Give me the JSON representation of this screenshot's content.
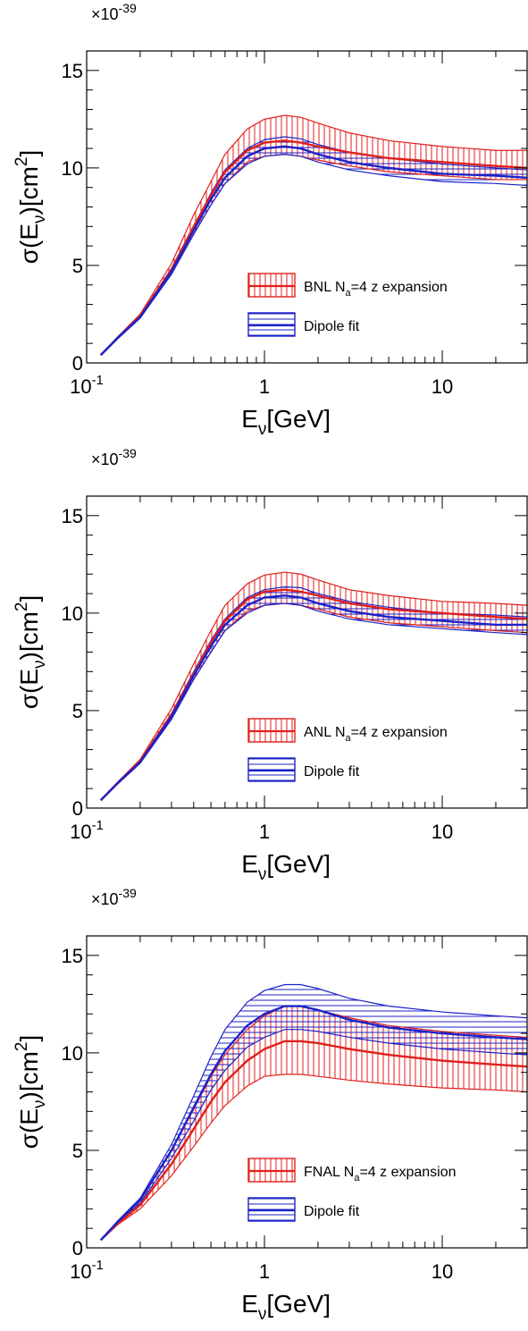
{
  "chart_data": [
    {
      "type": "area",
      "multiplier": "×10",
      "multiplier_exp": "-39",
      "ylabel": {
        "pre": "σ(E",
        "sub": "ν",
        "mid": ")[cm",
        "sup": "2",
        "post": "]"
      },
      "xlabel": {
        "pre": "E",
        "sub": "ν",
        "post": "[GeV]"
      },
      "x_scale": "log",
      "xlim": [
        0.1,
        30
      ],
      "ylim": [
        0,
        16
      ],
      "x_ticks": [
        {
          "base": "10",
          "exp": "-1"
        },
        {
          "text": "1"
        },
        {
          "text": "10"
        }
      ],
      "y_ticks": [
        "0",
        "5",
        "10",
        "15"
      ],
      "legend": [
        {
          "pre": "BNL N",
          "sub": "a",
          "post": "=4 z expansion"
        },
        {
          "text": "Dipole fit"
        }
      ],
      "x": [
        0.12,
        0.15,
        0.2,
        0.3,
        0.4,
        0.5,
        0.6,
        0.8,
        1.0,
        1.3,
        1.6,
        2.0,
        3.0,
        5.0,
        10.0,
        20.0,
        30.0
      ],
      "series": [
        {
          "color": "#e0201c",
          "hatch": "vertical",
          "center": [
            0.4,
            1.3,
            2.4,
            4.8,
            7.0,
            8.6,
            9.8,
            10.9,
            11.3,
            11.4,
            11.3,
            11.1,
            10.8,
            10.5,
            10.3,
            10.1,
            10.0
          ],
          "lower": [
            0.4,
            1.25,
            2.3,
            4.6,
            6.6,
            8.1,
            9.2,
            10.3,
            10.6,
            10.7,
            10.6,
            10.4,
            10.1,
            9.8,
            9.6,
            9.4,
            9.4
          ],
          "upper": [
            0.4,
            1.35,
            2.5,
            5.1,
            7.6,
            9.3,
            10.7,
            12.0,
            12.5,
            12.7,
            12.6,
            12.3,
            11.8,
            11.4,
            11.1,
            10.9,
            10.9
          ]
        },
        {
          "color": "#1c22c8",
          "hatch": "horizontal",
          "center": [
            0.4,
            1.3,
            2.35,
            4.7,
            6.8,
            8.4,
            9.5,
            10.6,
            11.0,
            11.1,
            11.0,
            10.7,
            10.3,
            10.0,
            9.7,
            9.6,
            9.5
          ],
          "lower": [
            0.4,
            1.25,
            2.3,
            4.55,
            6.6,
            8.1,
            9.2,
            10.2,
            10.6,
            10.7,
            10.6,
            10.3,
            9.9,
            9.6,
            9.3,
            9.2,
            9.1
          ],
          "upper": [
            0.4,
            1.35,
            2.4,
            4.85,
            7.0,
            8.7,
            9.9,
            11.0,
            11.45,
            11.6,
            11.5,
            11.2,
            10.8,
            10.5,
            10.2,
            10.0,
            9.9
          ]
        }
      ]
    },
    {
      "type": "area",
      "multiplier": "×10",
      "multiplier_exp": "-39",
      "ylabel": {
        "pre": "σ(E",
        "sub": "ν",
        "mid": ")[cm",
        "sup": "2",
        "post": "]"
      },
      "xlabel": {
        "pre": "E",
        "sub": "ν",
        "post": "[GeV]"
      },
      "x_scale": "log",
      "xlim": [
        0.1,
        30
      ],
      "ylim": [
        0,
        16
      ],
      "x_ticks": [
        {
          "base": "10",
          "exp": "-1"
        },
        {
          "text": "1"
        },
        {
          "text": "10"
        }
      ],
      "y_ticks": [
        "0",
        "5",
        "10",
        "15"
      ],
      "legend": [
        {
          "pre": "ANL N",
          "sub": "a",
          "post": "=4 z expansion"
        },
        {
          "text": "Dipole fit"
        }
      ],
      "x": [
        0.12,
        0.15,
        0.2,
        0.3,
        0.4,
        0.5,
        0.6,
        0.8,
        1.0,
        1.3,
        1.6,
        2.0,
        3.0,
        5.0,
        10.0,
        20.0,
        30.0
      ],
      "series": [
        {
          "color": "#e0201c",
          "hatch": "vertical",
          "center": [
            0.4,
            1.3,
            2.4,
            4.8,
            6.9,
            8.5,
            9.6,
            10.7,
            11.1,
            11.2,
            11.1,
            10.9,
            10.5,
            10.2,
            10.0,
            9.8,
            9.7
          ],
          "lower": [
            0.4,
            1.25,
            2.3,
            4.6,
            6.6,
            8.0,
            9.1,
            10.1,
            10.4,
            10.5,
            10.4,
            10.2,
            9.8,
            9.5,
            9.3,
            9.1,
            9.0
          ],
          "upper": [
            0.4,
            1.35,
            2.5,
            5.1,
            7.4,
            9.1,
            10.4,
            11.5,
            11.95,
            12.1,
            12.0,
            11.7,
            11.2,
            10.9,
            10.6,
            10.5,
            10.4
          ]
        },
        {
          "color": "#1c22c8",
          "hatch": "horizontal",
          "center": [
            0.4,
            1.3,
            2.35,
            4.7,
            6.8,
            8.3,
            9.4,
            10.4,
            10.8,
            10.9,
            10.8,
            10.5,
            10.1,
            9.8,
            9.6,
            9.4,
            9.4
          ],
          "lower": [
            0.4,
            1.25,
            2.3,
            4.55,
            6.6,
            8.0,
            9.1,
            10.0,
            10.4,
            10.5,
            10.4,
            10.1,
            9.7,
            9.4,
            9.2,
            9.0,
            8.9
          ],
          "upper": [
            0.4,
            1.35,
            2.4,
            4.85,
            7.0,
            8.6,
            9.7,
            10.8,
            11.2,
            11.35,
            11.3,
            11.0,
            10.6,
            10.3,
            10.0,
            9.9,
            9.8
          ]
        }
      ]
    },
    {
      "type": "area",
      "multiplier": "×10",
      "multiplier_exp": "-39",
      "ylabel": {
        "pre": "σ(E",
        "sub": "ν",
        "mid": ")[cm",
        "sup": "2",
        "post": "]"
      },
      "xlabel": {
        "pre": "E",
        "sub": "ν",
        "post": "[GeV]"
      },
      "x_scale": "log",
      "xlim": [
        0.1,
        30
      ],
      "ylim": [
        0,
        16
      ],
      "x_ticks": [
        {
          "base": "10",
          "exp": "-1"
        },
        {
          "text": "1"
        },
        {
          "text": "10"
        }
      ],
      "y_ticks": [
        "0",
        "5",
        "10",
        "15"
      ],
      "legend": [
        {
          "pre": "FNAL N",
          "sub": "a",
          "post": "=4 z expansion"
        },
        {
          "text": "Dipole fit"
        }
      ],
      "x": [
        0.12,
        0.15,
        0.2,
        0.3,
        0.4,
        0.5,
        0.6,
        0.8,
        1.0,
        1.3,
        1.6,
        2.0,
        3.0,
        5.0,
        10.0,
        20.0,
        30.0
      ],
      "series": [
        {
          "color": "#e0201c",
          "hatch": "vertical",
          "center": [
            0.4,
            1.25,
            2.2,
            4.3,
            6.1,
            7.5,
            8.5,
            9.6,
            10.2,
            10.6,
            10.6,
            10.5,
            10.2,
            9.9,
            9.6,
            9.4,
            9.3
          ],
          "lower": [
            0.4,
            1.2,
            2.0,
            3.7,
            5.2,
            6.4,
            7.3,
            8.3,
            8.8,
            8.9,
            8.9,
            8.8,
            8.6,
            8.4,
            8.2,
            8.1,
            8.0
          ],
          "upper": [
            0.4,
            1.35,
            2.45,
            5.0,
            7.1,
            8.8,
            9.9,
            11.2,
            11.9,
            12.4,
            12.4,
            12.2,
            11.8,
            11.4,
            11.1,
            10.9,
            10.8
          ]
        },
        {
          "color": "#1c22c8",
          "hatch": "horizontal",
          "center": [
            0.4,
            1.35,
            2.45,
            5.0,
            7.2,
            8.9,
            10.1,
            11.4,
            12.0,
            12.4,
            12.4,
            12.2,
            11.7,
            11.3,
            11.0,
            10.8,
            10.7
          ],
          "lower": [
            0.4,
            1.3,
            2.3,
            4.6,
            6.5,
            8.1,
            9.1,
            10.3,
            10.8,
            11.2,
            11.2,
            11.1,
            10.8,
            10.5,
            10.2,
            10.0,
            9.9
          ],
          "upper": [
            0.4,
            1.4,
            2.55,
            5.3,
            7.8,
            9.8,
            11.2,
            12.6,
            13.2,
            13.5,
            13.5,
            13.3,
            12.8,
            12.4,
            12.1,
            11.9,
            11.8
          ]
        }
      ]
    }
  ]
}
